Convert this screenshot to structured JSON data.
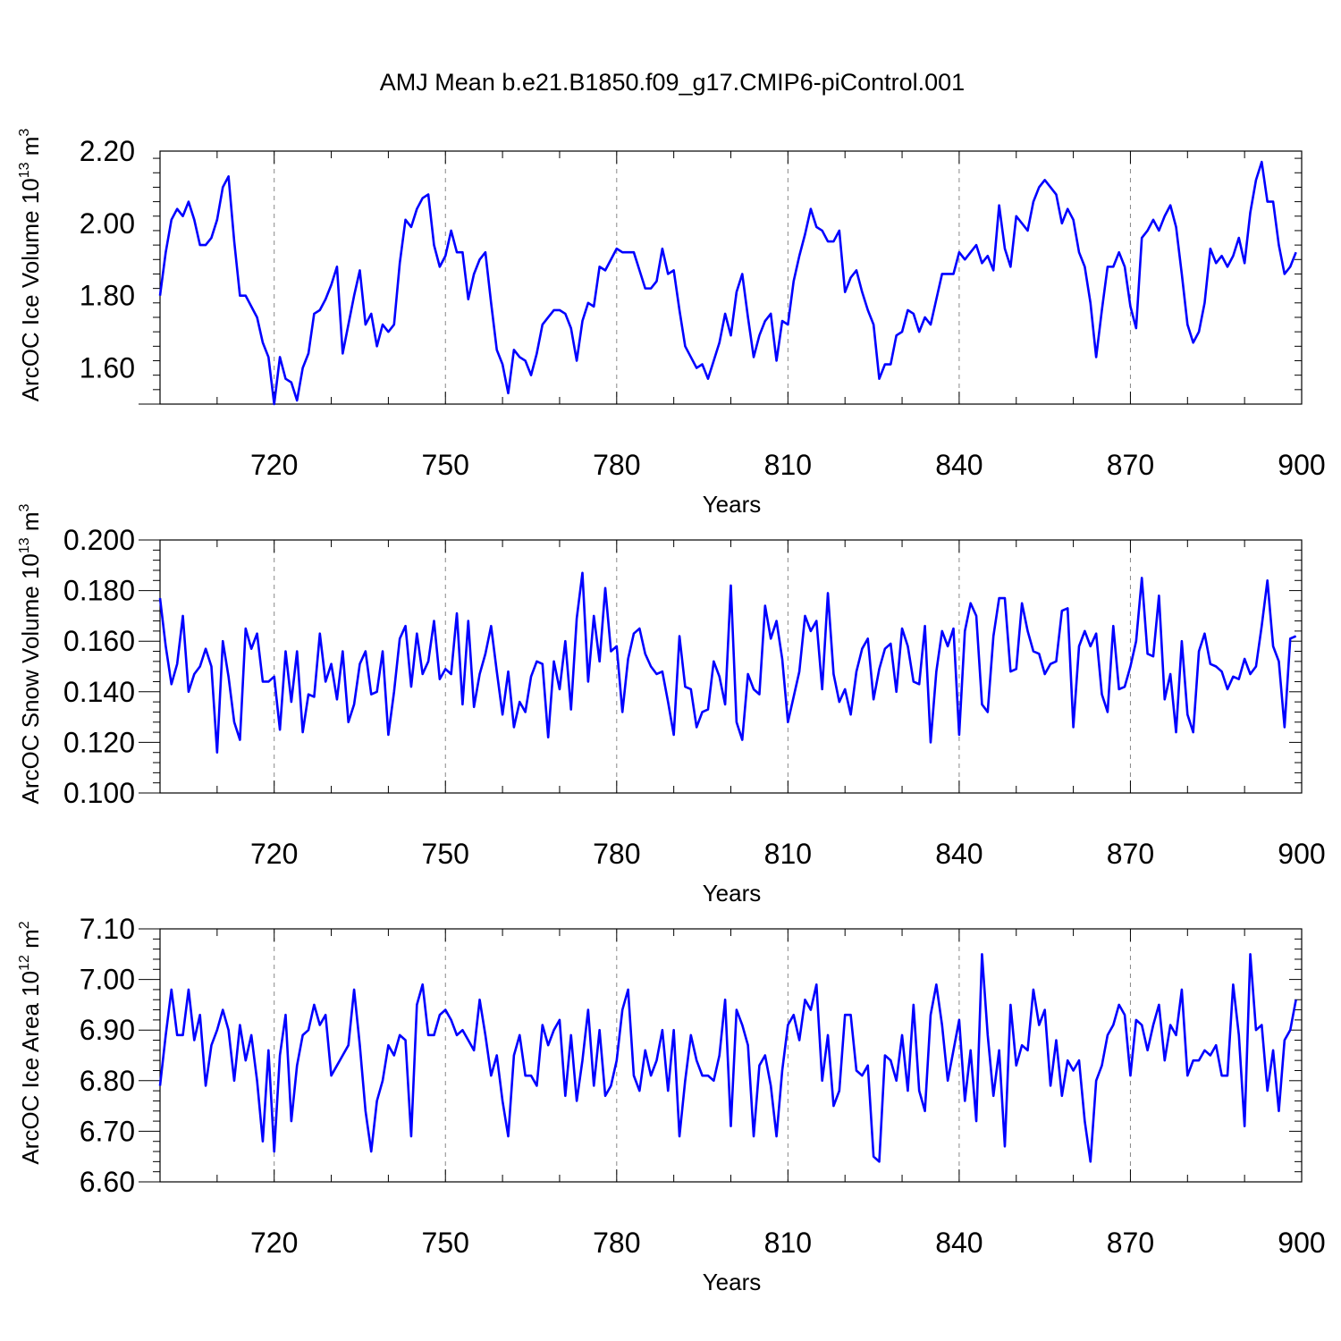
{
  "figure": {
    "title": "AMJ Mean b.e21.B1850.f09_g17.CMIP6-piControl.001"
  },
  "chart_data": [
    {
      "type": "line",
      "id": "ice-volume",
      "ylabel": "ArcOC Ice Volume",
      "ylabel_power_base": "10",
      "ylabel_power_exp": "13",
      "ylabel_unit": "m",
      "ylabel_unit_exp": "3",
      "xlabel": "Years",
      "xlim": [
        700,
        900
      ],
      "ylim": [
        1.5,
        2.2
      ],
      "xticks": [
        720,
        750,
        780,
        810,
        840,
        870,
        900
      ],
      "xtick_labels": [
        "720",
        "750",
        "780",
        "810",
        "840",
        "870",
        "900"
      ],
      "yticks": [
        1.6,
        1.8,
        2.0,
        2.2
      ],
      "ytick_labels": [
        "1.60",
        "1.80",
        "2.00",
        "2.20"
      ],
      "x_start": 700,
      "line_color": "#0000ff",
      "values": [
        1.8,
        1.92,
        2.01,
        2.04,
        2.02,
        2.06,
        2.01,
        1.94,
        1.94,
        1.96,
        2.01,
        2.1,
        2.13,
        1.95,
        1.8,
        1.8,
        1.77,
        1.74,
        1.67,
        1.63,
        1.5,
        1.63,
        1.57,
        1.56,
        1.51,
        1.6,
        1.64,
        1.75,
        1.76,
        1.79,
        1.83,
        1.88,
        1.64,
        1.72,
        1.8,
        1.87,
        1.72,
        1.75,
        1.66,
        1.72,
        1.7,
        1.72,
        1.89,
        2.01,
        1.99,
        2.04,
        2.07,
        2.08,
        1.94,
        1.88,
        1.91,
        1.98,
        1.92,
        1.92,
        1.79,
        1.86,
        1.9,
        1.92,
        1.78,
        1.65,
        1.61,
        1.53,
        1.65,
        1.63,
        1.62,
        1.58,
        1.64,
        1.72,
        1.74,
        1.76,
        1.76,
        1.75,
        1.71,
        1.62,
        1.73,
        1.78,
        1.77,
        1.88,
        1.87,
        1.9,
        1.93,
        1.92,
        1.92,
        1.92,
        1.87,
        1.82,
        1.82,
        1.84,
        1.93,
        1.86,
        1.87,
        1.76,
        1.66,
        1.63,
        1.6,
        1.61,
        1.57,
        1.62,
        1.67,
        1.75,
        1.69,
        1.81,
        1.86,
        1.74,
        1.63,
        1.69,
        1.73,
        1.75,
        1.62,
        1.73,
        1.72,
        1.84,
        1.91,
        1.97,
        2.04,
        1.99,
        1.98,
        1.95,
        1.95,
        1.98,
        1.81,
        1.85,
        1.87,
        1.81,
        1.76,
        1.72,
        1.57,
        1.61,
        1.61,
        1.69,
        1.7,
        1.76,
        1.75,
        1.7,
        1.74,
        1.72,
        1.79,
        1.86,
        1.86,
        1.86,
        1.92,
        1.9,
        1.92,
        1.94,
        1.89,
        1.91,
        1.87,
        2.05,
        1.93,
        1.88,
        2.02,
        2.0,
        1.98,
        2.06,
        2.1,
        2.12,
        2.1,
        2.08,
        2.0,
        2.04,
        2.01,
        1.92,
        1.88,
        1.78,
        1.63,
        1.76,
        1.88,
        1.88,
        1.92,
        1.88,
        1.77,
        1.71,
        1.96,
        1.98,
        2.01,
        1.98,
        2.02,
        2.05,
        1.99,
        1.86,
        1.72,
        1.67,
        1.7,
        1.78,
        1.93,
        1.89,
        1.91,
        1.88,
        1.91,
        1.96,
        1.89,
        2.03,
        2.12,
        2.17,
        2.06,
        2.06,
        1.94,
        1.86,
        1.88,
        1.92
      ]
    },
    {
      "type": "line",
      "id": "snow-volume",
      "ylabel": "ArcOC Snow Volume",
      "ylabel_power_base": "10",
      "ylabel_power_exp": "13",
      "ylabel_unit": "m",
      "ylabel_unit_exp": "3",
      "xlabel": "Years",
      "xlim": [
        700,
        900
      ],
      "ylim": [
        0.1,
        0.2
      ],
      "xticks": [
        720,
        750,
        780,
        810,
        840,
        870,
        900
      ],
      "xtick_labels": [
        "720",
        "750",
        "780",
        "810",
        "840",
        "870",
        "900"
      ],
      "yticks": [
        0.1,
        0.12,
        0.14,
        0.16,
        0.18,
        0.2
      ],
      "ytick_labels": [
        "0.100",
        "0.120",
        "0.140",
        "0.160",
        "0.180",
        "0.200"
      ],
      "x_start": 700,
      "line_color": "#0000ff",
      "values": [
        0.177,
        0.158,
        0.143,
        0.151,
        0.17,
        0.14,
        0.147,
        0.15,
        0.157,
        0.15,
        0.116,
        0.16,
        0.146,
        0.128,
        0.121,
        0.165,
        0.157,
        0.163,
        0.144,
        0.144,
        0.146,
        0.125,
        0.156,
        0.136,
        0.156,
        0.124,
        0.139,
        0.138,
        0.163,
        0.144,
        0.151,
        0.137,
        0.156,
        0.128,
        0.135,
        0.151,
        0.156,
        0.139,
        0.14,
        0.156,
        0.123,
        0.14,
        0.161,
        0.166,
        0.142,
        0.163,
        0.147,
        0.152,
        0.168,
        0.145,
        0.149,
        0.147,
        0.171,
        0.135,
        0.168,
        0.134,
        0.147,
        0.155,
        0.166,
        0.148,
        0.131,
        0.148,
        0.126,
        0.136,
        0.132,
        0.146,
        0.152,
        0.151,
        0.122,
        0.152,
        0.141,
        0.16,
        0.133,
        0.169,
        0.187,
        0.144,
        0.17,
        0.152,
        0.181,
        0.156,
        0.158,
        0.132,
        0.153,
        0.163,
        0.165,
        0.155,
        0.15,
        0.147,
        0.148,
        0.136,
        0.123,
        0.162,
        0.142,
        0.141,
        0.126,
        0.132,
        0.133,
        0.152,
        0.146,
        0.135,
        0.182,
        0.128,
        0.121,
        0.147,
        0.141,
        0.139,
        0.174,
        0.161,
        0.168,
        0.153,
        0.128,
        0.138,
        0.148,
        0.17,
        0.164,
        0.168,
        0.141,
        0.179,
        0.147,
        0.136,
        0.141,
        0.131,
        0.148,
        0.157,
        0.161,
        0.137,
        0.149,
        0.157,
        0.159,
        0.14,
        0.165,
        0.158,
        0.144,
        0.143,
        0.166,
        0.12,
        0.148,
        0.164,
        0.158,
        0.165,
        0.123,
        0.164,
        0.175,
        0.17,
        0.135,
        0.132,
        0.162,
        0.177,
        0.177,
        0.148,
        0.149,
        0.175,
        0.164,
        0.156,
        0.155,
        0.147,
        0.151,
        0.152,
        0.172,
        0.173,
        0.126,
        0.158,
        0.164,
        0.158,
        0.163,
        0.139,
        0.132,
        0.166,
        0.141,
        0.142,
        0.15,
        0.16,
        0.185,
        0.155,
        0.154,
        0.178,
        0.137,
        0.147,
        0.124,
        0.16,
        0.131,
        0.124,
        0.156,
        0.163,
        0.151,
        0.15,
        0.148,
        0.141,
        0.146,
        0.145,
        0.153,
        0.147,
        0.15,
        0.166,
        0.184,
        0.158,
        0.152,
        0.126,
        0.161,
        0.162
      ]
    },
    {
      "type": "line",
      "id": "ice-area",
      "ylabel": "ArcOC Ice Area",
      "ylabel_power_base": "10",
      "ylabel_power_exp": "12",
      "ylabel_unit": "m",
      "ylabel_unit_exp": "2",
      "xlabel": "Years",
      "xlim": [
        700,
        900
      ],
      "ylim": [
        6.6,
        7.1
      ],
      "xticks": [
        720,
        750,
        780,
        810,
        840,
        870,
        900
      ],
      "xtick_labels": [
        "720",
        "750",
        "780",
        "810",
        "840",
        "870",
        "900"
      ],
      "yticks": [
        6.6,
        6.7,
        6.8,
        6.9,
        7.0,
        7.1
      ],
      "ytick_labels": [
        "6.60",
        "6.70",
        "6.80",
        "6.90",
        "7.00",
        "7.10"
      ],
      "x_start": 700,
      "line_color": "#0000ff",
      "values": [
        6.79,
        6.89,
        6.98,
        6.89,
        6.89,
        6.98,
        6.88,
        6.93,
        6.79,
        6.87,
        6.9,
        6.94,
        6.9,
        6.8,
        6.91,
        6.84,
        6.89,
        6.8,
        6.68,
        6.86,
        6.66,
        6.85,
        6.93,
        6.72,
        6.83,
        6.89,
        6.9,
        6.95,
        6.91,
        6.93,
        6.81,
        6.83,
        6.85,
        6.87,
        6.98,
        6.87,
        6.74,
        6.66,
        6.76,
        6.8,
        6.87,
        6.85,
        6.89,
        6.88,
        6.69,
        6.95,
        6.99,
        6.89,
        6.89,
        6.93,
        6.94,
        6.92,
        6.89,
        6.9,
        6.88,
        6.86,
        6.96,
        6.89,
        6.81,
        6.85,
        6.76,
        6.69,
        6.85,
        6.89,
        6.81,
        6.81,
        6.79,
        6.91,
        6.87,
        6.9,
        6.92,
        6.77,
        6.89,
        6.76,
        6.84,
        6.94,
        6.79,
        6.9,
        6.77,
        6.79,
        6.84,
        6.94,
        6.98,
        6.81,
        6.78,
        6.86,
        6.81,
        6.84,
        6.9,
        6.78,
        6.9,
        6.69,
        6.8,
        6.89,
        6.84,
        6.81,
        6.81,
        6.8,
        6.85,
        6.96,
        6.71,
        6.94,
        6.91,
        6.87,
        6.69,
        6.83,
        6.85,
        6.79,
        6.69,
        6.82,
        6.91,
        6.93,
        6.88,
        6.96,
        6.94,
        6.99,
        6.8,
        6.89,
        6.75,
        6.78,
        6.93,
        6.93,
        6.82,
        6.81,
        6.83,
        6.65,
        6.64,
        6.85,
        6.84,
        6.8,
        6.89,
        6.78,
        6.95,
        6.78,
        6.74,
        6.93,
        6.99,
        6.91,
        6.8,
        6.86,
        6.92,
        6.76,
        6.86,
        6.72,
        7.05,
        6.89,
        6.77,
        6.86,
        6.67,
        6.95,
        6.83,
        6.87,
        6.86,
        6.98,
        6.91,
        6.94,
        6.79,
        6.88,
        6.77,
        6.84,
        6.82,
        6.84,
        6.72,
        6.64,
        6.8,
        6.83,
        6.89,
        6.91,
        6.95,
        6.93,
        6.81,
        6.92,
        6.91,
        6.86,
        6.91,
        6.95,
        6.84,
        6.91,
        6.89,
        6.98,
        6.81,
        6.84,
        6.84,
        6.86,
        6.85,
        6.87,
        6.81,
        6.81,
        6.99,
        6.89,
        6.71,
        7.05,
        6.9,
        6.91,
        6.78,
        6.86,
        6.74,
        6.88,
        6.9,
        6.96
      ]
    }
  ]
}
